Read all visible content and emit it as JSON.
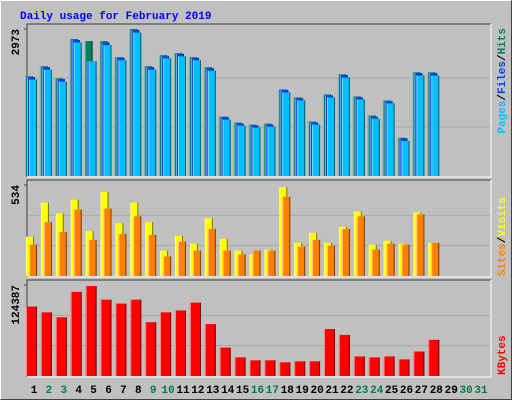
{
  "chart_data": [
    {
      "type": "bar",
      "title": "Daily usage for February 2019",
      "ylim": [
        0,
        2973
      ],
      "yticks": [
        2973
      ],
      "series": [
        {
          "name": "Pages",
          "color": "#00c0ff",
          "values": [
            1950,
            2150,
            1910,
            2700,
            2320,
            2650,
            2340,
            2900,
            2150,
            2380,
            2420,
            2340,
            2130,
            1140,
            1020,
            980,
            1000,
            1690,
            1530,
            1040,
            1590,
            1990,
            1550,
            1160,
            1470,
            710,
            2030,
            2030,
            null,
            null,
            null
          ]
        },
        {
          "name": "Files",
          "color": "#0040ff",
          "values": [
            2000,
            2200,
            1960,
            2750,
            2321,
            2700,
            2390,
            2950,
            2200,
            2420,
            2470,
            2390,
            2180,
            1190,
            1060,
            1020,
            1040,
            1740,
            1570,
            1080,
            1630,
            2040,
            1590,
            1200,
            1510,
            760,
            2080,
            2080,
            null,
            null,
            null
          ]
        },
        {
          "name": "Hits",
          "color": "#00805c",
          "values": [
            2016,
            2219,
            1975,
            2769,
            2728,
            2728,
            2403,
            2973,
            2219,
            2443,
            2484,
            2403,
            2199,
            1201,
            1079,
            1038,
            1059,
            1751,
            1588,
            1100,
            1649,
            2056,
            1609,
            1222,
            1527,
            774,
            2097,
            2097,
            null,
            null,
            null
          ]
        }
      ]
    },
    {
      "type": "bar",
      "ylim": [
        0,
        534
      ],
      "yticks": [
        534
      ],
      "series": [
        {
          "name": "Sites",
          "color": "#ff8000",
          "values": [
            184,
            316,
            258,
            390,
            212,
            396,
            247,
            350,
            241,
            115,
            201,
            149,
            276,
            149,
            126,
            149,
            149,
            465,
            172,
            212,
            178,
            276,
            350,
            155,
            189,
            184,
            362,
            195,
            null,
            null,
            null
          ]
        },
        {
          "name": "Visits",
          "color": "#ffff00",
          "values": [
            230,
            431,
            367,
            448,
            264,
            494,
            310,
            431,
            316,
            149,
            235,
            189,
            339,
            218,
            149,
            126,
            155,
            522,
            195,
            253,
            195,
            287,
            379,
            184,
            207,
            189,
            373,
            195,
            null,
            null,
            null
          ]
        }
      ]
    },
    {
      "type": "bar",
      "ylim": [
        0,
        124387
      ],
      "yticks": [
        124387
      ],
      "categories": [
        "1",
        "2",
        "3",
        "4",
        "5",
        "6",
        "7",
        "8",
        "9",
        "10",
        "11",
        "12",
        "13",
        "14",
        "15",
        "16",
        "17",
        "18",
        "19",
        "20",
        "21",
        "22",
        "23",
        "24",
        "25",
        "26",
        "27",
        "28",
        "29",
        "30",
        "31"
      ],
      "category_colors": [
        "#000000",
        "#008040",
        "#008040",
        "#000000",
        "#000000",
        "#000000",
        "#000000",
        "#000000",
        "#008040",
        "#008040",
        "#000000",
        "#000000",
        "#000000",
        "#000000",
        "#000000",
        "#008040",
        "#008040",
        "#000000",
        "#000000",
        "#000000",
        "#000000",
        "#000000",
        "#008040",
        "#008040",
        "#000000",
        "#000000",
        "#000000",
        "#000000",
        "#000000",
        "#008040",
        "#008040"
      ],
      "series": [
        {
          "name": "KBytes",
          "color": "#ff0000",
          "values": [
            94960,
            86940,
            80250,
            115030,
            123050,
            104330,
            98980,
            104330,
            73560,
            86940,
            89610,
            100310,
            70890,
            38790,
            25410,
            21400,
            21400,
            18730,
            20060,
            20060,
            64200,
            56180,
            26750,
            25410,
            26750,
            22740,
            33440,
            49490,
            null,
            null,
            null
          ]
        }
      ]
    }
  ]
}
